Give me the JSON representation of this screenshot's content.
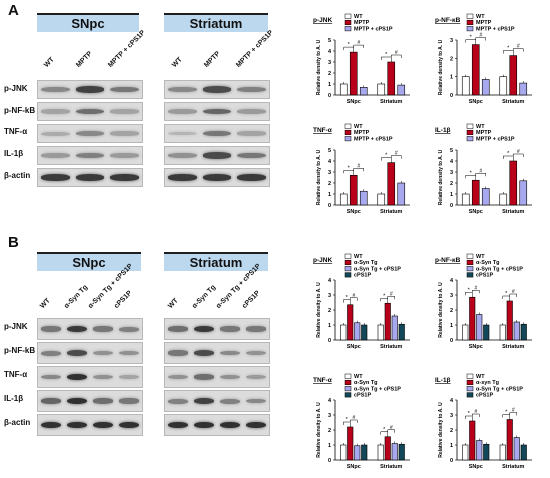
{
  "panelA": {
    "letter": "A",
    "regions": [
      "SNpc",
      "Striatum"
    ],
    "lanes": [
      "WT",
      "MPTP",
      "MPTP + cPS1P"
    ],
    "rows": [
      "p-JNK",
      "p-NF-kB",
      "TNF-α",
      "IL-1β",
      "β-actin"
    ]
  },
  "panelB": {
    "letter": "B",
    "regions": [
      "SNpc",
      "Striatum"
    ],
    "lanes": [
      "WT",
      "α-Syn Tg",
      "α-Syn Tg + cPS1P",
      "cPS1P"
    ],
    "rows": [
      "p-JNK",
      "p-NF-kB",
      "TNF-α",
      "IL-1β",
      "β-actin"
    ]
  },
  "colors": {
    "wt": "#ffffff",
    "treat1": "#b8001a",
    "treat2": "#a8a8ee",
    "treat3": "#12485a",
    "blot_bar": "#bcd8ef"
  },
  "chart_data": [
    {
      "type": "bar",
      "panel": "A",
      "title": "p-JNK",
      "ylabel": "Relative density to A. U",
      "ylim": [
        0,
        5
      ],
      "yticks": [
        0,
        1,
        2,
        3,
        4,
        5
      ],
      "categories": [
        "SNpc",
        "Striatum"
      ],
      "legend": [
        "WT",
        "MPTP",
        "MPTP + cPS1P"
      ],
      "series": [
        {
          "name": "WT",
          "values": [
            1,
            1
          ]
        },
        {
          "name": "MPTP",
          "values": [
            3.9,
            3.0
          ]
        },
        {
          "name": "MPTP + cPS1P",
          "values": [
            0.7,
            0.9
          ]
        }
      ]
    },
    {
      "type": "bar",
      "panel": "A",
      "title": "p-NF-κB",
      "ylabel": "Relative density to A. U",
      "ylim": [
        0,
        3
      ],
      "yticks": [
        0,
        1,
        2,
        3
      ],
      "categories": [
        "SNpc",
        "Striatum"
      ],
      "legend": [
        "WT",
        "MPTP",
        "MPTP + cPS1P"
      ],
      "series": [
        {
          "name": "WT",
          "values": [
            1,
            1
          ]
        },
        {
          "name": "MPTP",
          "values": [
            2.75,
            2.15
          ]
        },
        {
          "name": "MPTP + cPS1P",
          "values": [
            0.85,
            0.65
          ]
        }
      ]
    },
    {
      "type": "bar",
      "panel": "A",
      "title": "TNF-α",
      "ylabel": "Relative density to A. U",
      "ylim": [
        0,
        5
      ],
      "yticks": [
        0,
        1,
        2,
        3,
        4,
        5
      ],
      "categories": [
        "SNpc",
        "Striatum"
      ],
      "legend": [
        "WT",
        "MPTP",
        "MPTP + cPS1P"
      ],
      "series": [
        {
          "name": "WT",
          "values": [
            1,
            1
          ]
        },
        {
          "name": "MPTP",
          "values": [
            2.7,
            3.85
          ]
        },
        {
          "name": "MPTP + cPS1P",
          "values": [
            1.25,
            2.0
          ]
        }
      ]
    },
    {
      "type": "bar",
      "panel": "A",
      "title": "IL-1β",
      "ylabel": "Relative density to A. U",
      "ylim": [
        0,
        5
      ],
      "yticks": [
        0,
        1,
        2,
        3,
        4,
        5
      ],
      "categories": [
        "SNpc",
        "Striatum"
      ],
      "legend": [
        "WT",
        "MPTP",
        "MPTP + cPS1P"
      ],
      "series": [
        {
          "name": "WT",
          "values": [
            1,
            1
          ]
        },
        {
          "name": "MPTP",
          "values": [
            2.25,
            4.0
          ]
        },
        {
          "name": "MPTP + cPS1P",
          "values": [
            1.5,
            2.2
          ]
        }
      ]
    },
    {
      "type": "bar",
      "panel": "B",
      "title": "p-JNK",
      "ylabel": "Relative density to A. U",
      "ylim": [
        0,
        4
      ],
      "yticks": [
        0,
        1,
        2,
        3,
        4
      ],
      "categories": [
        "SNpc",
        "Striatum"
      ],
      "legend": [
        "WT",
        "α-Syn Tg",
        "α-Syn Tg + cPS1P",
        "cPS1P"
      ],
      "series": [
        {
          "name": "WT",
          "values": [
            1,
            1
          ]
        },
        {
          "name": "α-Syn Tg",
          "values": [
            2.35,
            2.45
          ]
        },
        {
          "name": "α-Syn Tg + cPS1P",
          "values": [
            1.15,
            1.6
          ]
        },
        {
          "name": "cPS1P",
          "values": [
            1.0,
            1.05
          ]
        }
      ]
    },
    {
      "type": "bar",
      "panel": "B",
      "title": "p-NF-κB",
      "ylabel": "Relative density to A. U",
      "ylim": [
        0,
        4
      ],
      "yticks": [
        0,
        1,
        2,
        3,
        4
      ],
      "categories": [
        "SNpc",
        "Striatum"
      ],
      "legend": [
        "WT",
        "α-Syn Tg",
        "α-Syn Tg + cPS1P",
        "cPS1P"
      ],
      "series": [
        {
          "name": "WT",
          "values": [
            1,
            1
          ]
        },
        {
          "name": "α-Syn Tg",
          "values": [
            2.85,
            2.6
          ]
        },
        {
          "name": "α-Syn Tg + cPS1P",
          "values": [
            1.7,
            1.2
          ]
        },
        {
          "name": "cPS1P",
          "values": [
            1.0,
            1.05
          ]
        }
      ]
    },
    {
      "type": "bar",
      "panel": "B",
      "title": "TNF-α",
      "ylabel": "Relative density to A. U",
      "ylim": [
        0,
        4
      ],
      "yticks": [
        0,
        1,
        2,
        3,
        4
      ],
      "categories": [
        "SNpc",
        "Striatum"
      ],
      "legend": [
        "WT",
        "α-Syn Tg",
        "α-Syn Tg + cPS1P",
        "cPS1P"
      ],
      "series": [
        {
          "name": "WT",
          "values": [
            1,
            1
          ]
        },
        {
          "name": "α-Syn Tg",
          "values": [
            2.2,
            1.55
          ]
        },
        {
          "name": "α-Syn Tg + cPS1P",
          "values": [
            0.95,
            1.1
          ]
        },
        {
          "name": "cPS1P",
          "values": [
            1.0,
            1.05
          ]
        }
      ]
    },
    {
      "type": "bar",
      "panel": "B",
      "title": "IL-1β",
      "ylabel": "Relative density to A. U",
      "ylim": [
        0,
        4
      ],
      "yticks": [
        0,
        1,
        2,
        3,
        4
      ],
      "categories": [
        "SNpc",
        "Striatum"
      ],
      "legend": [
        "WT",
        "α-syn Tg",
        "α-Syn Tg + cPS1P",
        "cPS1P"
      ],
      "series": [
        {
          "name": "WT",
          "values": [
            1,
            1
          ]
        },
        {
          "name": "α-syn Tg",
          "values": [
            2.6,
            2.7
          ]
        },
        {
          "name": "α-Syn Tg + cPS1P",
          "values": [
            1.3,
            1.5
          ]
        },
        {
          "name": "cPS1P",
          "values": [
            1.05,
            1.0
          ]
        }
      ]
    }
  ]
}
